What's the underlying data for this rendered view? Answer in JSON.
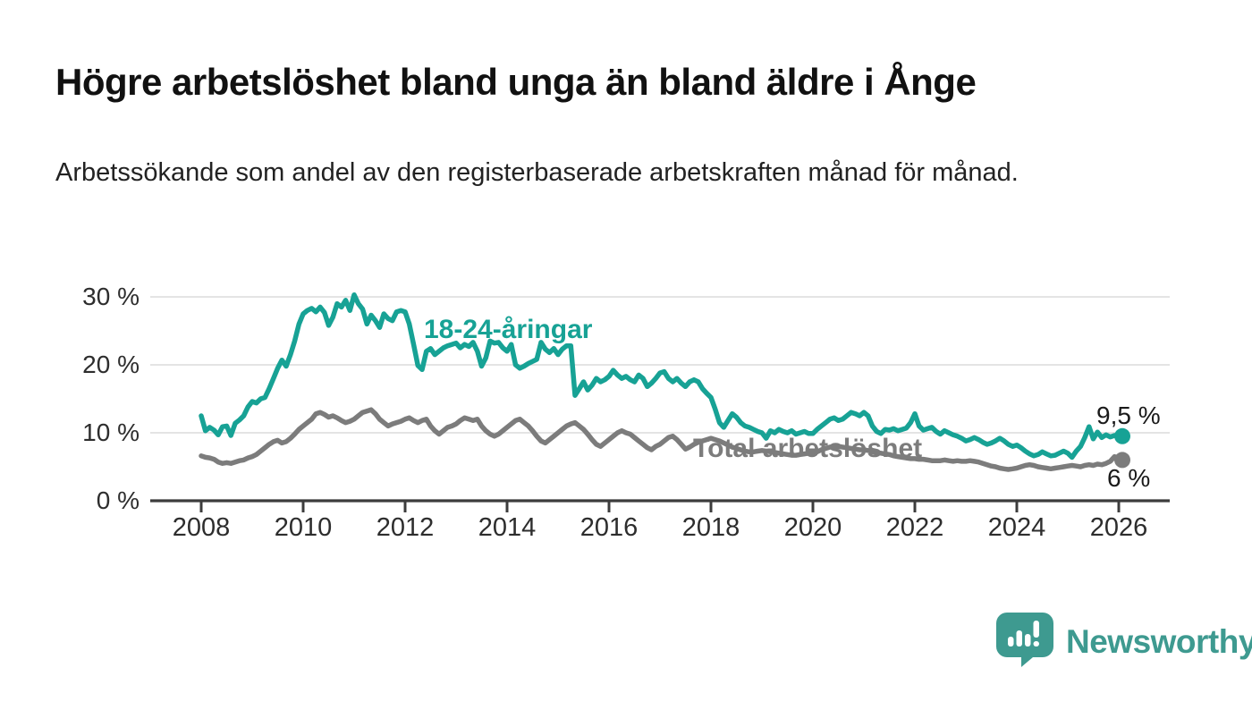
{
  "header": {
    "title": "Högre arbetslöshet bland unga än bland äldre i Ånge",
    "subtitle": "Arbetssökande som andel av den registerbaserade arbetskraften månad för månad."
  },
  "footer": {
    "brand": "Newsworthy",
    "brand_color": "#3E9A90",
    "logo_icon": "newsworthy-speech-bubble-bar-chart-icon"
  },
  "chart_data": {
    "type": "line",
    "title": "Högre arbetslöshet bland unga än bland äldre i Ånge",
    "subtitle": "Arbetssökande som andel av den registerbaserade arbetskraften månad för månad.",
    "unit": "%",
    "grid": "horizontal",
    "legend_position": "inline-annotations",
    "x_start_year": 2008,
    "x_monthly_step": true,
    "x_ticks": [
      2008,
      2010,
      2012,
      2014,
      2016,
      2018,
      2020,
      2022,
      2024,
      2026
    ],
    "y_ticks": [
      0,
      10,
      20,
      30
    ],
    "y_tick_labels": [
      "0 %",
      "10 %",
      "20 %",
      "30 %"
    ],
    "ylim": [
      0,
      31.5
    ],
    "colors": {
      "youth": "#17A295",
      "total": "#7C7C7C",
      "grid": "#DBDBDB",
      "axis": "#3C3C3C"
    },
    "series": [
      {
        "name": "18-24-åringar",
        "color": "#17A295",
        "end_label": "9,5 %",
        "end_value": 9.5,
        "values": [
          12.5,
          10.3,
          10.8,
          10.4,
          9.7,
          10.9,
          11.0,
          9.6,
          11.4,
          11.9,
          12.5,
          13.8,
          14.6,
          14.4,
          15.0,
          15.2,
          16.5,
          18.0,
          19.5,
          20.7,
          19.8,
          21.5,
          23.5,
          26.0,
          27.5,
          28.0,
          28.3,
          27.8,
          28.5,
          27.7,
          25.8,
          27.0,
          29.0,
          28.5,
          29.5,
          28.0,
          30.3,
          29.0,
          28.2,
          26.0,
          27.3,
          26.5,
          25.5,
          27.5,
          26.8,
          26.5,
          27.8,
          28.0,
          27.8,
          26.0,
          23.0,
          19.9,
          19.3,
          22.0,
          22.4,
          21.5,
          22.0,
          22.5,
          22.8,
          23.0,
          23.2,
          22.5,
          23.0,
          22.7,
          23.3,
          22.0,
          19.8,
          21.0,
          23.5,
          23.2,
          23.3,
          22.5,
          22.0,
          23.0,
          20.0,
          19.5,
          19.8,
          20.2,
          20.5,
          20.8,
          23.3,
          22.3,
          21.8,
          22.4,
          21.5,
          22.3,
          22.8,
          22.8,
          15.5,
          16.5,
          17.5,
          16.3,
          17.0,
          18.0,
          17.5,
          17.8,
          18.3,
          19.2,
          18.5,
          18.0,
          18.3,
          17.8,
          17.5,
          18.5,
          18.0,
          16.8,
          17.3,
          18.0,
          18.8,
          19.0,
          18.0,
          17.5,
          18.0,
          17.3,
          16.8,
          17.5,
          17.8,
          17.5,
          16.5,
          15.8,
          15.2,
          13.5,
          11.5,
          10.8,
          11.8,
          12.8,
          12.3,
          11.5,
          11.0,
          10.8,
          10.5,
          10.2,
          10.0,
          9.2,
          10.3,
          10.0,
          10.5,
          10.2,
          10.0,
          10.3,
          9.8,
          10.0,
          10.2,
          9.9,
          9.9,
          10.5,
          11.0,
          11.5,
          12.0,
          12.2,
          11.8,
          12.0,
          12.5,
          13.0,
          12.8,
          12.5,
          13.0,
          12.5,
          11.0,
          10.2,
          9.9,
          10.5,
          10.4,
          10.6,
          10.3,
          10.5,
          10.7,
          11.5,
          12.8,
          11.0,
          10.4,
          10.6,
          10.8,
          10.2,
          9.8,
          10.3,
          10.0,
          9.7,
          9.5,
          9.2,
          8.8,
          9.0,
          9.3,
          9.0,
          8.6,
          8.3,
          8.5,
          8.8,
          9.2,
          8.8,
          8.3,
          8.0,
          8.2,
          7.8,
          7.3,
          6.9,
          6.6,
          6.8,
          7.2,
          6.9,
          6.6,
          6.7,
          7.0,
          7.3,
          7.0,
          6.4,
          7.3,
          8.0,
          9.3,
          10.9,
          9.1,
          10.1,
          9.3,
          9.7,
          9.4,
          9.6,
          9.5
        ]
      },
      {
        "name": "Total arbetslöshet",
        "color": "#7C7C7C",
        "end_label": "6 %",
        "end_value": 6.0,
        "values": [
          6.6,
          6.4,
          6.3,
          6.1,
          5.7,
          5.5,
          5.6,
          5.5,
          5.7,
          5.9,
          6.0,
          6.3,
          6.5,
          6.8,
          7.3,
          7.8,
          8.3,
          8.7,
          8.9,
          8.5,
          8.7,
          9.2,
          9.8,
          10.5,
          11.0,
          11.5,
          12.0,
          12.8,
          13.0,
          12.7,
          12.3,
          12.5,
          12.2,
          11.8,
          11.5,
          11.7,
          12.0,
          12.5,
          13.0,
          13.2,
          13.4,
          12.8,
          12.0,
          11.5,
          11.0,
          11.3,
          11.5,
          11.7,
          12.0,
          12.2,
          11.8,
          11.5,
          11.8,
          12.0,
          11.0,
          10.3,
          9.8,
          10.3,
          10.8,
          11.0,
          11.3,
          11.8,
          12.2,
          12.0,
          11.8,
          12.0,
          11.0,
          10.3,
          9.8,
          9.5,
          9.8,
          10.3,
          10.8,
          11.3,
          11.8,
          12.0,
          11.5,
          11.0,
          10.3,
          9.5,
          8.8,
          8.5,
          9.0,
          9.5,
          10.0,
          10.5,
          11.0,
          11.3,
          11.5,
          11.0,
          10.5,
          9.8,
          9.0,
          8.3,
          8.0,
          8.5,
          9.0,
          9.5,
          10.0,
          10.3,
          10.0,
          9.8,
          9.3,
          8.8,
          8.3,
          7.8,
          7.5,
          8.0,
          8.3,
          8.8,
          9.3,
          9.5,
          9.0,
          8.3,
          7.6,
          7.9,
          8.3,
          8.6,
          8.8,
          9.0,
          9.2,
          9.0,
          8.8,
          8.5,
          8.2,
          7.9,
          7.7,
          7.5,
          7.3,
          7.2,
          7.2,
          7.3,
          7.4,
          7.3,
          7.2,
          7.1,
          7.0,
          6.9,
          6.8,
          6.7,
          6.7,
          6.8,
          6.9,
          7.0,
          7.0,
          7.2,
          7.5,
          7.7,
          7.9,
          8.0,
          8.0,
          7.9,
          7.8,
          7.7,
          7.6,
          7.5,
          7.5,
          7.4,
          7.2,
          7.1,
          7.0,
          6.9,
          6.8,
          6.6,
          6.5,
          6.4,
          6.3,
          6.2,
          6.2,
          6.1,
          6.1,
          6.0,
          5.9,
          5.9,
          5.9,
          6.0,
          5.9,
          5.8,
          5.9,
          5.8,
          5.8,
          5.9,
          5.8,
          5.7,
          5.5,
          5.3,
          5.1,
          5.0,
          4.8,
          4.7,
          4.6,
          4.7,
          4.8,
          5.0,
          5.2,
          5.3,
          5.2,
          5.0,
          4.9,
          4.8,
          4.7,
          4.8,
          4.9,
          5.0,
          5.1,
          5.2,
          5.1,
          5.0,
          5.2,
          5.3,
          5.2,
          5.4,
          5.3,
          5.5,
          5.8,
          6.5,
          6.0
        ]
      }
    ]
  }
}
